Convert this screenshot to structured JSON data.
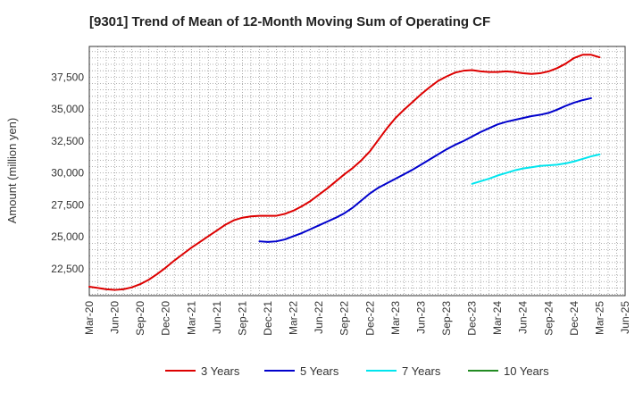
{
  "chart_data": {
    "type": "line",
    "title": "[9301]  Trend of Mean of 12-Month Moving Sum of Operating CF",
    "xlabel": "",
    "ylabel": "Amount (million yen)",
    "x_ticks": [
      "Mar-20",
      "Jun-20",
      "Sep-20",
      "Dec-20",
      "Mar-21",
      "Jun-21",
      "Sep-21",
      "Dec-21",
      "Mar-22",
      "Jun-22",
      "Sep-22",
      "Dec-22",
      "Mar-23",
      "Jun-23",
      "Sep-23",
      "Dec-23",
      "Mar-24",
      "Jun-24",
      "Sep-24",
      "Dec-24",
      "Mar-25",
      "Jun-25"
    ],
    "y_ticks": [
      22500,
      25000,
      27500,
      30000,
      32500,
      35000,
      37500
    ],
    "y_tick_labels": [
      "22,500",
      "25,000",
      "27,500",
      "30,000",
      "32,500",
      "35,000",
      "37,500"
    ],
    "ylim": [
      20400,
      39900
    ],
    "grid": true,
    "legend_position": "bottom",
    "series": [
      {
        "name": "3 Years",
        "color": "#dd0000",
        "x": [
          0,
          1,
          2,
          3,
          4,
          5,
          6,
          7,
          8,
          9,
          10,
          11,
          12,
          13,
          14,
          15,
          16,
          17,
          18,
          19,
          20,
          21,
          22,
          23,
          24,
          25,
          26,
          27,
          28,
          29,
          30,
          31,
          32,
          33,
          34,
          35,
          36,
          37,
          38,
          39,
          40,
          41,
          42,
          43,
          44,
          45,
          46,
          47,
          48,
          49,
          50,
          51,
          52,
          53,
          54,
          55,
          56,
          57,
          58,
          59,
          60,
          61
        ],
        "values": [
          21100,
          21000,
          20900,
          20850,
          20900,
          21050,
          21300,
          21650,
          22100,
          22600,
          23150,
          23650,
          24150,
          24600,
          25050,
          25500,
          25950,
          26300,
          26500,
          26600,
          26650,
          26650,
          26650,
          26800,
          27050,
          27400,
          27800,
          28300,
          28800,
          29350,
          29900,
          30400,
          31000,
          31700,
          32600,
          33500,
          34300,
          34950,
          35550,
          36150,
          36700,
          37200,
          37550,
          37850,
          38000,
          38050,
          37950,
          37900,
          37900,
          37950,
          37900,
          37800,
          37750,
          37800,
          37950,
          38200,
          38550,
          39000,
          39250,
          39250,
          39050,
          null
        ]
      },
      {
        "name": "5 Years",
        "color": "#0000cc",
        "x": [
          0,
          1,
          2,
          3,
          4,
          5,
          6,
          7,
          8,
          9,
          10,
          11,
          12,
          13,
          14,
          15,
          16,
          17,
          18,
          19,
          20,
          21,
          22,
          23,
          24,
          25,
          26,
          27,
          28,
          29,
          30,
          31,
          32,
          33,
          34,
          35,
          36,
          37,
          38,
          39,
          40,
          41,
          42,
          43,
          44,
          45,
          46,
          47,
          48,
          49,
          50,
          51,
          52,
          53,
          54,
          55,
          56,
          57,
          58,
          59,
          60,
          61
        ],
        "values": [
          null,
          null,
          null,
          null,
          null,
          null,
          null,
          null,
          null,
          null,
          null,
          null,
          null,
          null,
          null,
          null,
          null,
          null,
          null,
          null,
          24650,
          24600,
          24650,
          24800,
          25050,
          25300,
          25600,
          25900,
          26200,
          26500,
          26850,
          27300,
          27850,
          28400,
          28850,
          29200,
          29550,
          29900,
          30250,
          30650,
          31050,
          31450,
          31850,
          32200,
          32500,
          32850,
          33200,
          33500,
          33800,
          34000,
          34150,
          34300,
          34450,
          34550,
          34700,
          34950,
          35250,
          35500,
          35700,
          35850,
          null,
          null
        ]
      },
      {
        "name": "7 Years",
        "color": "#00e5ee",
        "x": [
          0,
          1,
          2,
          3,
          4,
          5,
          6,
          7,
          8,
          9,
          10,
          11,
          12,
          13,
          14,
          15,
          16,
          17,
          18,
          19,
          20,
          21,
          22,
          23,
          24,
          25,
          26,
          27,
          28,
          29,
          30,
          31,
          32,
          33,
          34,
          35,
          36,
          37,
          38,
          39,
          40,
          41,
          42,
          43,
          44,
          45,
          46,
          47,
          48,
          49,
          50,
          51,
          52,
          53,
          54,
          55,
          56,
          57,
          58,
          59,
          60,
          61
        ],
        "values": [
          null,
          null,
          null,
          null,
          null,
          null,
          null,
          null,
          null,
          null,
          null,
          null,
          null,
          null,
          null,
          null,
          null,
          null,
          null,
          null,
          null,
          null,
          null,
          null,
          null,
          null,
          null,
          null,
          null,
          null,
          null,
          null,
          null,
          null,
          null,
          null,
          null,
          null,
          null,
          null,
          null,
          null,
          null,
          null,
          null,
          29150,
          29350,
          29550,
          29800,
          30000,
          30200,
          30350,
          30450,
          30550,
          30600,
          30650,
          30750,
          30900,
          31100,
          31300,
          31450,
          null
        ]
      },
      {
        "name": "10 Years",
        "color": "#228b22",
        "x": [],
        "values": []
      }
    ]
  }
}
